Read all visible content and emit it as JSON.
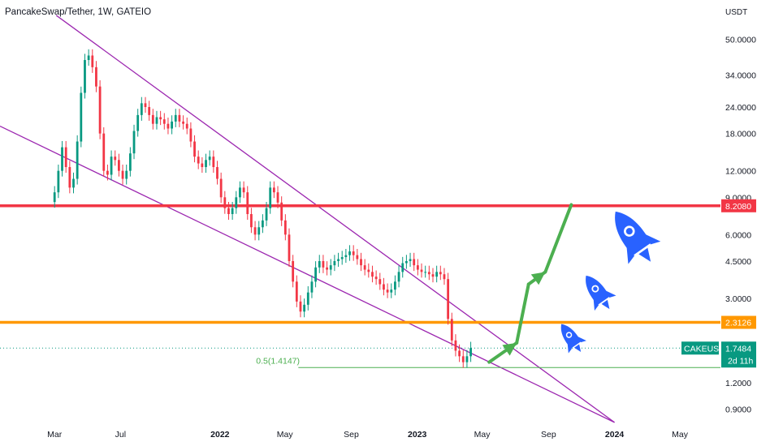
{
  "chart_data": {
    "type": "candlestick",
    "title": "PancakeSwap/Tether, 1W, GATEIO",
    "price_unit": "USDT",
    "y_scale": "log",
    "ylim": [
      0.8,
      60
    ],
    "y_ticks": [
      "50.0000",
      "34.0000",
      "24.0000",
      "18.0000",
      "12.0000",
      "9.0000",
      "6.0000",
      "4.5000",
      "3.0000",
      "1.2000",
      "0.9000"
    ],
    "y_tick_values": [
      50,
      34,
      24,
      18,
      12,
      9,
      6,
      4.5,
      3,
      1.2,
      0.9
    ],
    "x_ticks": [
      {
        "label": "Mar",
        "date": "2021-03-01",
        "bold": false
      },
      {
        "label": "Jul",
        "date": "2021-07-01",
        "bold": false
      },
      {
        "label": "2022",
        "date": "2022-01-01",
        "bold": true
      },
      {
        "label": "May",
        "date": "2022-05-01",
        "bold": false
      },
      {
        "label": "Sep",
        "date": "2022-09-01",
        "bold": false
      },
      {
        "label": "2023",
        "date": "2023-01-01",
        "bold": true
      },
      {
        "label": "May",
        "date": "2023-05-01",
        "bold": false
      },
      {
        "label": "Sep",
        "date": "2023-09-01",
        "bold": false
      },
      {
        "label": "2024",
        "date": "2024-01-01",
        "bold": true
      },
      {
        "label": "May",
        "date": "2024-05-01",
        "bold": false
      }
    ],
    "xlim": [
      "2020-11-20",
      "2024-07-15"
    ],
    "horizontal_levels": [
      {
        "price": 8.208,
        "label": "8.2080",
        "color": "#f23645"
      },
      {
        "price": 2.3126,
        "label": "2.3126",
        "color": "#ff9800"
      }
    ],
    "last_price": {
      "symbol": "CAKEUSDT",
      "price": 1.7484,
      "label": "1.7484",
      "countdown": "2d 11h",
      "color": "#089981"
    },
    "fib_level": {
      "label": "0.5(1.4147)",
      "price": 1.4147,
      "start": "2022-05-26",
      "end": "2024-07-15",
      "color": "#4caf50"
    },
    "trendlines": [
      {
        "color": "#9c27b0",
        "from": {
          "date": "2020-11-20",
          "price": 19.5
        },
        "to": {
          "date": "2024-01-01",
          "price": 0.78
        }
      },
      {
        "color": "#9c27b0",
        "from": {
          "date": "2021-03-04",
          "price": 65
        },
        "to": {
          "date": "2024-01-01",
          "price": 0.78
        }
      }
    ],
    "projection_arrows": [
      {
        "color": "#4caf50",
        "points": [
          {
            "date": "2023-05-14",
            "price": 1.5
          },
          {
            "date": "2023-07-04",
            "price": 1.85
          },
          {
            "date": "2023-07-26",
            "price": 3.5
          },
          {
            "date": "2023-08-26",
            "price": 4.0
          },
          {
            "date": "2023-10-13",
            "price": 8.3
          }
        ]
      }
    ],
    "candles": {
      "start": "2021-03-01",
      "interval_days": 7,
      "up_color": "#089981",
      "down_color": "#f23645",
      "closes": [
        9.5,
        12.0,
        15.5,
        12.5,
        10.0,
        11.0,
        16.5,
        28.0,
        40.0,
        42.0,
        37.0,
        30.0,
        18.0,
        12.0,
        11.5,
        14.0,
        13.5,
        12.0,
        11.0,
        12.0,
        14.5,
        18.5,
        22.0,
        25.0,
        24.0,
        22.0,
        20.0,
        21.5,
        21.0,
        20.0,
        19.0,
        20.5,
        22.0,
        20.5,
        20.0,
        19.0,
        16.5,
        14.0,
        13.0,
        12.5,
        13.5,
        14.0,
        12.5,
        11.0,
        9.0,
        8.0,
        7.5,
        8.0,
        9.0,
        10.0,
        9.5,
        7.5,
        6.5,
        6.0,
        6.5,
        7.0,
        8.0,
        10.0,
        9.5,
        8.5,
        7.0,
        6.0,
        4.5,
        3.6,
        2.9,
        2.6,
        2.8,
        3.2,
        3.6,
        4.2,
        4.5,
        4.2,
        4.1,
        4.3,
        4.5,
        4.6,
        4.7,
        4.8,
        5.0,
        4.8,
        4.6,
        4.3,
        4.1,
        4.0,
        3.8,
        3.7,
        3.5,
        3.3,
        3.2,
        3.3,
        3.6,
        4.0,
        4.4,
        4.5,
        4.6,
        4.3,
        4.1,
        4.0,
        4.0,
        3.9,
        3.8,
        4.0,
        3.9,
        3.7,
        2.4,
        1.9,
        1.7,
        1.6,
        1.5,
        1.6,
        1.75
      ]
    }
  }
}
